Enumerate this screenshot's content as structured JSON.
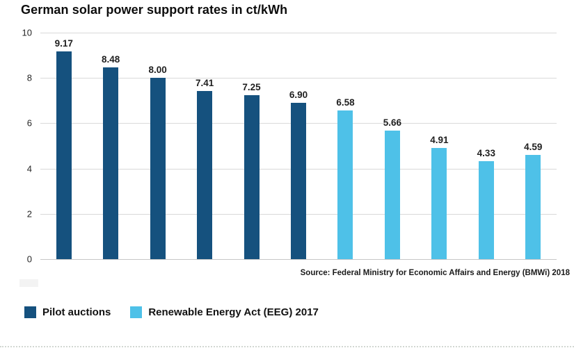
{
  "title": "German solar power support rates in ct/kWh",
  "source": "Source: Federal Ministry for Economic Affairs and Energy (BMWi) 2018",
  "colors": {
    "pilot_auctions": "#15517e",
    "eeg_2017": "#4ec1e8",
    "gridline": "#d9d9d9",
    "zero_line": "#c6c6c6"
  },
  "legend": [
    {
      "label": "Pilot auctions",
      "color": "#15517e"
    },
    {
      "label": "Renewable Energy Act (EEG) 2017",
      "color": "#4ec1e8"
    }
  ],
  "chart_data": {
    "type": "bar",
    "title": "German solar power support rates in ct/kWh",
    "xlabel": "",
    "ylabel": "",
    "ylim": [
      0,
      10
    ],
    "yticks": [
      0,
      2,
      4,
      6,
      8,
      10
    ],
    "grid": true,
    "legend_position": "bottom-left",
    "series": [
      {
        "name": "Pilot auctions",
        "color": "#15517e",
        "values": [
          9.17,
          8.48,
          8.0,
          7.41,
          7.25,
          6.9
        ]
      },
      {
        "name": "Renewable Energy Act (EEG) 2017",
        "color": "#4ec1e8",
        "values": [
          6.58,
          5.66,
          4.91,
          4.33,
          4.59
        ]
      }
    ],
    "bars": [
      {
        "value": 9.17,
        "label": "9.17",
        "series": 0
      },
      {
        "value": 8.48,
        "label": "8.48",
        "series": 0
      },
      {
        "value": 8.0,
        "label": "8.00",
        "series": 0
      },
      {
        "value": 7.41,
        "label": "7.41",
        "series": 0
      },
      {
        "value": 7.25,
        "label": "7.25",
        "series": 0
      },
      {
        "value": 6.9,
        "label": "6.90",
        "series": 0
      },
      {
        "value": 6.58,
        "label": "6.58",
        "series": 1
      },
      {
        "value": 5.66,
        "label": "5.66",
        "series": 1
      },
      {
        "value": 4.91,
        "label": "4.91",
        "series": 1
      },
      {
        "value": 4.33,
        "label": "4.33",
        "series": 1
      },
      {
        "value": 4.59,
        "label": "4.59",
        "series": 1
      }
    ]
  }
}
